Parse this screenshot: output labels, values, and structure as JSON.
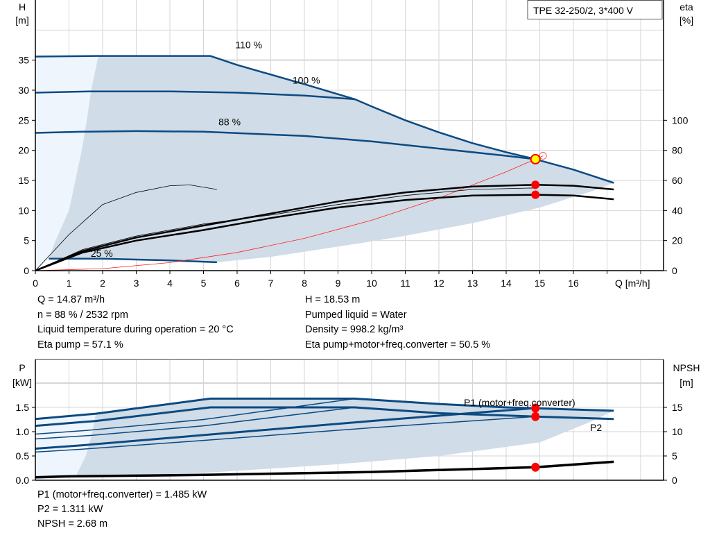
{
  "chart_data": [
    {
      "type": "line",
      "title": "TPE 32-250/2, 3*400 V",
      "xlabel": "Q [m³/h]",
      "ylabel_left": "H\n[m]",
      "ylabel_right": "eta\n[%]",
      "xlim": [
        0,
        18.7
      ],
      "ylim_left": [
        0,
        45
      ],
      "ylim_right": [
        0,
        180
      ],
      "x_ticks": [
        0,
        1,
        2,
        3,
        4,
        5,
        6,
        7,
        8,
        9,
        10,
        11,
        12,
        13,
        14,
        15,
        16
      ],
      "y_ticks_left": [
        0,
        5,
        10,
        15,
        20,
        25,
        30,
        35
      ],
      "y_ticks_right": [
        0,
        20,
        40,
        60,
        80,
        100
      ],
      "grid": true,
      "shaded_region": [
        [
          1.87,
          35.6
        ],
        [
          5.2,
          35.7
        ],
        [
          6,
          34.2
        ],
        [
          8,
          31
        ],
        [
          9.5,
          28.5
        ],
        [
          11,
          25
        ],
        [
          12,
          23
        ],
        [
          13,
          21.2
        ],
        [
          14,
          19.7
        ],
        [
          14.87,
          18.53
        ],
        [
          16,
          16.8
        ],
        [
          17.2,
          14.6
        ],
        [
          16.6,
          13.3
        ],
        [
          15,
          10.5
        ],
        [
          13,
          7.9
        ],
        [
          11,
          5.8
        ],
        [
          9.7,
          4.6
        ],
        [
          7,
          2.3
        ],
        [
          5.4,
          1.4
        ],
        [
          4,
          1.7
        ],
        [
          2,
          2.0
        ],
        [
          0.4,
          2.0
        ],
        [
          0.6,
          5
        ],
        [
          1.0,
          10
        ],
        [
          1.38,
          20
        ],
        [
          1.53,
          25
        ],
        [
          1.66,
          30
        ]
      ],
      "light_region": [
        [
          0,
          0
        ],
        [
          0,
          35.6
        ],
        [
          1.87,
          35.6
        ],
        [
          1.66,
          30
        ],
        [
          1.53,
          25
        ],
        [
          1.38,
          20
        ],
        [
          1.0,
          10
        ],
        [
          0.6,
          5
        ],
        [
          0.4,
          2.0
        ]
      ],
      "series": [
        {
          "name": "110 %",
          "axis": "left",
          "points": [
            [
              0,
              35.6
            ],
            [
              1.8,
              35.7
            ],
            [
              5.2,
              35.7
            ],
            [
              6,
              34.2
            ],
            [
              8,
              31
            ],
            [
              9.5,
              28.5
            ],
            [
              10,
              27.3
            ],
            [
              11,
              25
            ],
            [
              12,
              23
            ],
            [
              13,
              21.2
            ],
            [
              14,
              19.7
            ],
            [
              14.87,
              18.53
            ],
            [
              16,
              16.8
            ],
            [
              17.2,
              14.6
            ]
          ]
        },
        {
          "name": "100 %",
          "axis": "left",
          "points": [
            [
              0,
              29.6
            ],
            [
              1.6,
              29.8
            ],
            [
              4,
              29.8
            ],
            [
              6,
              29.6
            ],
            [
              8,
              29.1
            ],
            [
              9.5,
              28.5
            ]
          ]
        },
        {
          "name": "88 %",
          "axis": "left",
          "points": [
            [
              0,
              22.9
            ],
            [
              1.4,
              23.1
            ],
            [
              3,
              23.2
            ],
            [
              5,
              23.1
            ],
            [
              8,
              22.4
            ],
            [
              10,
              21.5
            ],
            [
              12,
              20.3
            ],
            [
              14,
              19.1
            ],
            [
              14.87,
              18.53
            ]
          ]
        },
        {
          "name": "25 %",
          "axis": "left",
          "points": [
            [
              0.4,
              2.0
            ],
            [
              2,
              2.0
            ],
            [
              4,
              1.7
            ],
            [
              5.4,
              1.4
            ]
          ]
        },
        {
          "axis": "left",
          "kind": "system",
          "points": [
            [
              0,
              0
            ],
            [
              2,
              0.34
            ],
            [
              4,
              1.34
            ],
            [
              6,
              3.02
            ],
            [
              8,
              5.36
            ],
            [
              10,
              8.38
            ],
            [
              12,
              12.07
            ],
            [
              14,
              16.43
            ],
            [
              14.87,
              18.53
            ],
            [
              15.1,
              19.1
            ]
          ]
        },
        {
          "axis": "right",
          "kind": "eta",
          "points": [
            [
              0,
              0
            ],
            [
              1.4,
              13
            ],
            [
              3,
              22
            ],
            [
              5,
              30
            ],
            [
              7,
              38
            ],
            [
              9,
              46
            ],
            [
              11,
              52
            ],
            [
              13,
              56
            ],
            [
              14.87,
              57.1
            ],
            [
              16,
              56.5
            ],
            [
              17.2,
              54
            ]
          ]
        },
        {
          "axis": "right",
          "kind": "eta",
          "points": [
            [
              0,
              0
            ],
            [
              1.4,
              12
            ],
            [
              3,
              20
            ],
            [
              5,
              27
            ],
            [
              7,
              35
            ],
            [
              9,
              42
            ],
            [
              11,
              47
            ],
            [
              13,
              50
            ],
            [
              14.87,
              50.5
            ],
            [
              16,
              50
            ],
            [
              17.2,
              47.5
            ]
          ]
        },
        {
          "axis": "right",
          "kind": "eta-thin",
          "points": [
            [
              0,
              0
            ],
            [
              1.4,
              14
            ],
            [
              3,
              23
            ],
            [
              5,
              31
            ],
            [
              7,
              37
            ],
            [
              9,
              44
            ],
            [
              11,
              50
            ],
            [
              13,
              54
            ],
            [
              14.87,
              55
            ]
          ]
        },
        {
          "axis": "right",
          "kind": "eta-thin",
          "points": [
            [
              0,
              0
            ],
            [
              1,
              24
            ],
            [
              2,
              44
            ],
            [
              3,
              52
            ],
            [
              4,
              56.5
            ],
            [
              4.6,
              57
            ],
            [
              5.4,
              54
            ]
          ]
        }
      ],
      "operating_points": [
        {
          "x": 14.87,
          "y": 18.53,
          "axis": "left",
          "kind": "duty"
        },
        {
          "x": 14.87,
          "y": 57.1,
          "axis": "right"
        },
        {
          "x": 14.87,
          "y": 50.5,
          "axis": "right"
        }
      ],
      "curve_labels": [
        "110 %",
        "100 %",
        "88 %",
        "25 %"
      ]
    },
    {
      "type": "line",
      "ylabel_left": "P\n[kW]",
      "ylabel_right": "NPSH\n[m]",
      "xlim": [
        0,
        18.7
      ],
      "ylim_left": [
        0,
        2.5
      ],
      "ylim_right": [
        0,
        25
      ],
      "y_ticks_left": [
        "0.0",
        "0.5",
        "1.0",
        "1.5"
      ],
      "y_ticks_right": [
        0,
        5,
        10,
        15
      ],
      "grid": true,
      "shaded_region": [
        [
          1.8,
          1.37
        ],
        [
          5.2,
          1.68
        ],
        [
          9.5,
          1.68
        ],
        [
          14,
          1.5
        ],
        [
          17.2,
          1.43
        ],
        [
          16.5,
          1.2
        ],
        [
          15,
          0.78
        ],
        [
          12,
          0.5
        ],
        [
          9,
          0.33
        ],
        [
          5,
          0.15
        ],
        [
          2,
          0.06
        ],
        [
          1.2,
          0.08
        ],
        [
          1.5,
          0.5
        ],
        [
          1.7,
          1.0
        ]
      ],
      "light_region": [
        [
          0,
          0
        ],
        [
          0,
          1.26
        ],
        [
          1.8,
          1.37
        ],
        [
          1.7,
          1.0
        ],
        [
          1.5,
          0.5
        ],
        [
          1.2,
          0.08
        ]
      ],
      "series": [
        {
          "name": "P1 (motor+freq.converter)",
          "axis": "left",
          "points": [
            [
              0,
              1.26
            ],
            [
              1.8,
              1.37
            ],
            [
              5.2,
              1.68
            ],
            [
              9.5,
              1.68
            ],
            [
              12,
              1.57
            ],
            [
              14,
              1.5
            ],
            [
              17.2,
              1.43
            ]
          ]
        },
        {
          "name": "P2",
          "axis": "left",
          "points": [
            [
              0,
              1.12
            ],
            [
              1.8,
              1.22
            ],
            [
              5.2,
              1.5
            ],
            [
              9.5,
              1.5
            ],
            [
              12,
              1.38
            ],
            [
              14.87,
              1.311
            ],
            [
              17.2,
              1.26
            ]
          ]
        },
        {
          "axis": "left",
          "points": [
            [
              0,
              0.95
            ],
            [
              1.6,
              1.03
            ],
            [
              5,
              1.25
            ],
            [
              9.5,
              1.68
            ]
          ]
        },
        {
          "axis": "left",
          "points": [
            [
              0,
              0.85
            ],
            [
              1.6,
              0.92
            ],
            [
              5,
              1.12
            ],
            [
              9.5,
              1.5
            ]
          ]
        },
        {
          "axis": "left",
          "points": [
            [
              0,
              0.65
            ],
            [
              1.4,
              0.72
            ],
            [
              5,
              0.93
            ],
            [
              10,
              1.22
            ],
            [
              14.87,
              1.485
            ]
          ]
        },
        {
          "axis": "left",
          "points": [
            [
              0,
              0.58
            ],
            [
              1.4,
              0.64
            ],
            [
              5,
              0.82
            ],
            [
              10,
              1.08
            ],
            [
              14.87,
              1.311
            ]
          ]
        },
        {
          "axis": "right",
          "kind": "npsh",
          "points": [
            [
              0,
              0.6
            ],
            [
              1,
              0.8
            ],
            [
              5,
              1.1
            ],
            [
              10,
              1.7
            ],
            [
              14.87,
              2.68
            ],
            [
              17.2,
              3.8
            ]
          ]
        }
      ],
      "operating_points": [
        {
          "x": 14.87,
          "y": 1.485,
          "axis": "left"
        },
        {
          "x": 14.87,
          "y": 1.311,
          "axis": "left"
        },
        {
          "x": 14.87,
          "y": 2.68,
          "axis": "right"
        }
      ]
    }
  ],
  "results_top": {
    "q": "Q = 14.87 m³/h",
    "n": "n = 88 % / 2532 rpm",
    "temp": "Liquid temperature during operation = 20 °C",
    "eta_pump": "Eta pump = 57.1 %",
    "h": "H = 18.53 m",
    "liquid": "Pumped liquid = Water",
    "density": "Density = 998.2 kg/m³",
    "eta_total": "Eta pump+motor+freq.converter = 50.5 %"
  },
  "results_bottom": {
    "p1": "P1 (motor+freq.converter) = 1.485 kW",
    "p2": "P2 = 1.311 kW",
    "npsh": "NPSH = 2.68 m"
  },
  "colors": {
    "curve": "#0b4a82",
    "shade": "#d0dce7",
    "light": "#eef5fc",
    "grid": "#d6d6d6",
    "point": "#ff0000",
    "duty": "#ffff00"
  }
}
